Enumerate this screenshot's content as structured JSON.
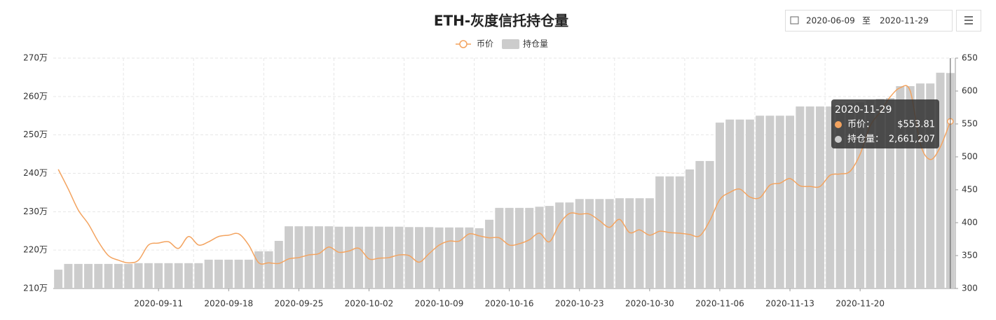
{
  "chart_data": {
    "type": "bar-line",
    "title": "ETH-灰度信托持仓量",
    "controls": {
      "start": "2020-06-09",
      "separator": "至",
      "end": "2020-11-29"
    },
    "categories": [
      null,
      null,
      null,
      null,
      null,
      null,
      null,
      null,
      null,
      null,
      "2020-09-11",
      null,
      null,
      null,
      null,
      null,
      null,
      "2020-09-18",
      null,
      null,
      null,
      null,
      null,
      null,
      "2020-09-25",
      null,
      null,
      null,
      null,
      null,
      null,
      "2020-10-02",
      null,
      null,
      null,
      null,
      null,
      null,
      "2020-10-09",
      null,
      null,
      null,
      null,
      null,
      null,
      "2020-10-16",
      null,
      null,
      null,
      null,
      null,
      null,
      "2020-10-23",
      null,
      null,
      null,
      null,
      null,
      null,
      "2020-10-30",
      null,
      null,
      null,
      null,
      null,
      null,
      "2020-11-06",
      null,
      null,
      null,
      null,
      null,
      null,
      "2020-11-13",
      null,
      null,
      null,
      null,
      null,
      null,
      "2020-11-20",
      null,
      null,
      null,
      null,
      null,
      null,
      null,
      null,
      null
    ],
    "series": [
      {
        "name": "币价",
        "type": "line",
        "axis": "y2",
        "color": "#f3a35f",
        "values": [
          481,
          451,
          419,
          398,
          371,
          350,
          343,
          339,
          343,
          366,
          369,
          371,
          361,
          379,
          366,
          371,
          379,
          381,
          383,
          366,
          339,
          339,
          338,
          345,
          347,
          351,
          353,
          363,
          355,
          357,
          361,
          345,
          346,
          347,
          351,
          350,
          340,
          353,
          366,
          372,
          372,
          383,
          380,
          377,
          377,
          366,
          368,
          374,
          384,
          371,
          398,
          414,
          413,
          413,
          403,
          393,
          405,
          385,
          389,
          381,
          387,
          385,
          384,
          382,
          380,
          403,
          435,
          446,
          451,
          439,
          438,
          457,
          460,
          467,
          456,
          455,
          455,
          472,
          474,
          478,
          504,
          547,
          568,
          591,
          605,
          600,
          520,
          496,
          515,
          553.81
        ]
      },
      {
        "name": "持仓量",
        "type": "bar",
        "axis": "y",
        "color": "#cccccc",
        "values": [
          2149000,
          2164000,
          2164000,
          2164000,
          2164000,
          2164000,
          2164000,
          2164000,
          2166000,
          2166000,
          2166000,
          2166000,
          2166000,
          2166000,
          2166000,
          2175000,
          2175000,
          2175000,
          2175000,
          2175000,
          2197000,
          2197000,
          2224000,
          2262000,
          2262000,
          2262000,
          2262000,
          2262000,
          2261000,
          2261000,
          2261000,
          2261000,
          2261000,
          2261000,
          2261000,
          2260000,
          2260000,
          2260000,
          2259000,
          2259000,
          2259000,
          2259000,
          2257000,
          2279000,
          2310000,
          2310000,
          2310000,
          2310000,
          2313000,
          2315000,
          2324000,
          2324000,
          2333000,
          2333000,
          2333000,
          2333000,
          2335000,
          2335000,
          2335000,
          2335000,
          2392000,
          2392000,
          2392000,
          2410000,
          2432000,
          2432000,
          2532000,
          2540000,
          2540000,
          2540000,
          2550000,
          2550000,
          2550000,
          2550000,
          2574000,
          2574000,
          2574000,
          2574000,
          2579000,
          2582000,
          2585000,
          2590000,
          2594000,
          2596000,
          2627000,
          2627000,
          2634000,
          2634000,
          2662000,
          2661207
        ]
      }
    ],
    "ylim": [
      2100000,
      2700000
    ],
    "yticks": [
      {
        "value": 2100000,
        "label": "210万"
      },
      {
        "value": 2200000,
        "label": "220万"
      },
      {
        "value": 2300000,
        "label": "230万"
      },
      {
        "value": 2400000,
        "label": "240万"
      },
      {
        "value": 2500000,
        "label": "250万"
      },
      {
        "value": 2600000,
        "label": "260万"
      },
      {
        "value": 2700000,
        "label": "270万"
      }
    ],
    "y2lim": [
      300,
      650
    ],
    "y2ticks": [
      300,
      350,
      400,
      450,
      500,
      550,
      600,
      650
    ],
    "grid": true,
    "tooltip": {
      "date": "2020-11-29",
      "items": [
        {
          "name": "币价：",
          "text": "$553.81"
        },
        {
          "name": "持仓量：",
          "text": "2,661,207"
        }
      ]
    }
  }
}
